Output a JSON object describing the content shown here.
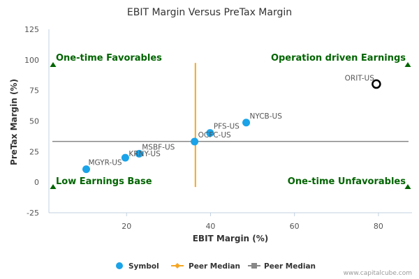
{
  "chart_data": {
    "type": "scatter",
    "title": "EBIT Margin Versus PreTax Margin",
    "xlabel": "EBIT Margin (%)",
    "ylabel": "PreTax Margin (%)",
    "xlim": [
      1.5,
      88
    ],
    "ylim": [
      -25,
      125
    ],
    "xticks": [
      "20",
      "40",
      "60",
      "80"
    ],
    "xtick_values": [
      20,
      40,
      60,
      80
    ],
    "yticks": [
      "125",
      "100",
      "75",
      "50",
      "25",
      "0",
      "-25"
    ],
    "ytick_values": [
      125,
      100,
      75,
      50,
      25,
      0,
      -25
    ],
    "grid": false,
    "legend_position": "bottom",
    "points": [
      {
        "label": "MGYR-US",
        "x": 10.4,
        "y": 10.6
      },
      {
        "label": "KRNY-US",
        "x": 19.7,
        "y": 20
      },
      {
        "label": "MSBF-US",
        "x": 23.0,
        "y": 23.3
      },
      {
        "label": "OCFC-US",
        "x": 36.2,
        "y": 33.2
      },
      {
        "label": "PFS-US",
        "x": 39.9,
        "y": 40.2
      },
      {
        "label": "NYCB-US",
        "x": 48.5,
        "y": 48.7
      },
      {
        "label": "ORIT-US",
        "x": 79.5,
        "y": 80.2,
        "highlight": true
      }
    ],
    "peer_median_x": 36.4,
    "peer_median_y": 33.3,
    "peer_median_y_span": [
      -4,
      97.5
    ],
    "quadrant_labels": {
      "top_left": "One-time Favorables",
      "top_right": "Operation driven Earnings",
      "bottom_left": "Low Earnings Base",
      "bottom_right": "One-time Unfavorables"
    },
    "legend": [
      {
        "name": "Symbol",
        "color": "#1aa3e8",
        "marker": "circle"
      },
      {
        "name": "Peer Median",
        "color": "#f5a623",
        "marker": "diamond"
      },
      {
        "name": "Peer Median",
        "color": "#888888",
        "marker": "square"
      }
    ],
    "colors": {
      "symbol": "#1aa3e8",
      "vertical_median": "#f5a623",
      "horizontal_median": "#888888",
      "quadrant": "#006400",
      "highlight_stroke": "#000000"
    }
  },
  "credit": "www.capitalcube.com"
}
